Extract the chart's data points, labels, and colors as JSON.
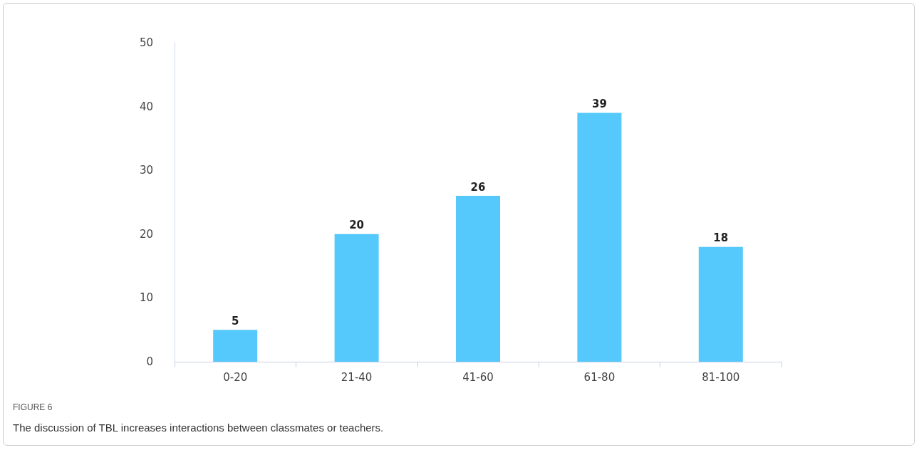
{
  "chart_data": {
    "type": "bar",
    "categories": [
      "0-20",
      "21-40",
      "41-60",
      "61-80",
      "81-100"
    ],
    "values": [
      5,
      20,
      26,
      39,
      18
    ],
    "color": "#55c8fc",
    "ylim": [
      0,
      50
    ],
    "yticks": [
      0,
      10,
      20,
      30,
      40,
      50
    ],
    "grid": false,
    "data_labels": true,
    "annotations": [
      "FIGURE 6",
      "The discussion of TBL increases interactions between classmates or teachers."
    ]
  }
}
